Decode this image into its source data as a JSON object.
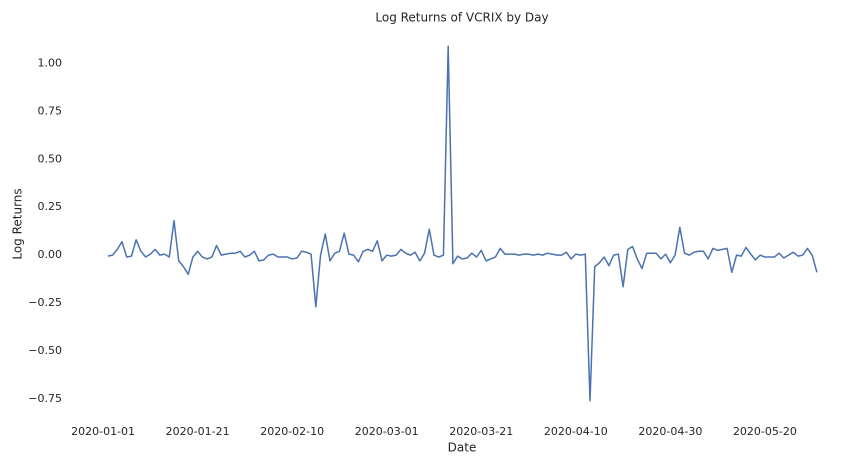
{
  "chart_data": {
    "type": "line",
    "title": "Log Returns of VCRIX by Day",
    "x_label": "Date",
    "y_label": "Log Returns",
    "color": "#4c72b0",
    "grid": false,
    "x": [
      "2020-01-02",
      "2020-01-03",
      "2020-01-04",
      "2020-01-05",
      "2020-01-06",
      "2020-01-07",
      "2020-01-08",
      "2020-01-09",
      "2020-01-10",
      "2020-01-11",
      "2020-01-12",
      "2020-01-13",
      "2020-01-14",
      "2020-01-15",
      "2020-01-16",
      "2020-01-17",
      "2020-01-18",
      "2020-01-19",
      "2020-01-20",
      "2020-01-21",
      "2020-01-22",
      "2020-01-23",
      "2020-01-24",
      "2020-01-25",
      "2020-01-26",
      "2020-01-27",
      "2020-01-28",
      "2020-01-29",
      "2020-01-30",
      "2020-01-31",
      "2020-02-01",
      "2020-02-02",
      "2020-02-03",
      "2020-02-04",
      "2020-02-05",
      "2020-02-06",
      "2020-02-07",
      "2020-02-08",
      "2020-02-09",
      "2020-02-10",
      "2020-02-11",
      "2020-02-12",
      "2020-02-13",
      "2020-02-14",
      "2020-02-15",
      "2020-02-16",
      "2020-02-17",
      "2020-02-18",
      "2020-02-19",
      "2020-02-20",
      "2020-02-21",
      "2020-02-22",
      "2020-02-23",
      "2020-02-24",
      "2020-02-25",
      "2020-02-26",
      "2020-02-27",
      "2020-02-28",
      "2020-02-29",
      "2020-03-01",
      "2020-03-02",
      "2020-03-03",
      "2020-03-04",
      "2020-03-05",
      "2020-03-06",
      "2020-03-07",
      "2020-03-08",
      "2020-03-09",
      "2020-03-10",
      "2020-03-11",
      "2020-03-12",
      "2020-03-13",
      "2020-03-14",
      "2020-03-15",
      "2020-03-16",
      "2020-03-17",
      "2020-03-18",
      "2020-03-19",
      "2020-03-20",
      "2020-03-21",
      "2020-03-22",
      "2020-03-23",
      "2020-03-24",
      "2020-03-25",
      "2020-03-26",
      "2020-03-27",
      "2020-03-28",
      "2020-03-29",
      "2020-03-30",
      "2020-03-31",
      "2020-04-01",
      "2020-04-02",
      "2020-04-03",
      "2020-04-04",
      "2020-04-05",
      "2020-04-06",
      "2020-04-07",
      "2020-04-08",
      "2020-04-09",
      "2020-04-10",
      "2020-04-11",
      "2020-04-12",
      "2020-04-13",
      "2020-04-14",
      "2020-04-15",
      "2020-04-16",
      "2020-04-17",
      "2020-04-18",
      "2020-04-19",
      "2020-04-20",
      "2020-04-21",
      "2020-04-22",
      "2020-04-23",
      "2020-04-24",
      "2020-04-25",
      "2020-04-26",
      "2020-04-27",
      "2020-04-28",
      "2020-04-29",
      "2020-04-30",
      "2020-05-01",
      "2020-05-02",
      "2020-05-03",
      "2020-05-04",
      "2020-05-05",
      "2020-05-06",
      "2020-05-07",
      "2020-05-08",
      "2020-05-09",
      "2020-05-10",
      "2020-05-11",
      "2020-05-12",
      "2020-05-13",
      "2020-05-14",
      "2020-05-15",
      "2020-05-16",
      "2020-05-17",
      "2020-05-18",
      "2020-05-19",
      "2020-05-20",
      "2020-05-21",
      "2020-05-22",
      "2020-05-23",
      "2020-05-24",
      "2020-05-25",
      "2020-05-26",
      "2020-05-27",
      "2020-05-28",
      "2020-05-29",
      "2020-05-30",
      "2020-05-31"
    ],
    "values": [
      -0.005,
      0,
      0.03,
      0.07,
      -0.01,
      -0.005,
      0.08,
      0.02,
      -0.01,
      0.005,
      0.03,
      0,
      0.005,
      -0.01,
      0.18,
      -0.03,
      -0.06,
      -0.1,
      -0.01,
      0.02,
      -0.01,
      -0.02,
      -0.01,
      0.05,
      0,
      0.005,
      0.01,
      0.01,
      0.02,
      -0.01,
      0,
      0.02,
      -0.03,
      -0.025,
      0,
      0.005,
      -0.01,
      -0.01,
      -0.01,
      -0.02,
      -0.015,
      0.02,
      0.015,
      0.005,
      -0.27,
      0,
      0.11,
      -0.03,
      0.01,
      0.02,
      0.115,
      0.005,
      0,
      -0.035,
      0.02,
      0.03,
      0.02,
      0.075,
      -0.03,
      0,
      -0.005,
      0,
      0.03,
      0.01,
      0,
      0.015,
      -0.03,
      0.01,
      0.135,
      0,
      -0.01,
      0,
      1.09,
      -0.045,
      -0.005,
      -0.02,
      -0.015,
      0.01,
      -0.01,
      0.025,
      -0.03,
      -0.02,
      -0.01,
      0.035,
      0.005,
      0.005,
      0.005,
      0,
      0.005,
      0.005,
      0,
      0.005,
      0,
      0.01,
      0.005,
      0,
      0,
      0.015,
      -0.02,
      0.005,
      0,
      0.005,
      -0.76,
      -0.06,
      -0.04,
      -0.01,
      -0.055,
      0,
      0.005,
      -0.165,
      0.03,
      0.045,
      -0.02,
      -0.07,
      0.01,
      0.01,
      0.01,
      -0.02,
      0.005,
      -0.04,
      0,
      0.145,
      0.01,
      0,
      0.015,
      0.02,
      0.02,
      -0.02,
      0.035,
      0.025,
      0.03,
      0.035,
      -0.09,
      0,
      -0.005,
      0.04,
      0.005,
      -0.025,
      0,
      -0.01,
      -0.01,
      -0.01,
      0.01,
      -0.015,
      0,
      0.015,
      -0.005,
      0,
      0.035,
      0,
      -0.09
    ],
    "xlim": [
      "2019-12-25",
      "2020-06-07"
    ],
    "xticks": [
      "2020-01-01",
      "2020-01-21",
      "2020-02-10",
      "2020-03-01",
      "2020-03-21",
      "2020-04-10",
      "2020-04-30",
      "2020-05-20"
    ],
    "ylim": [
      -0.85,
      1.18
    ],
    "yticks": [
      {
        "value": -0.75,
        "label": "−0.75"
      },
      {
        "value": -0.5,
        "label": "−0.50"
      },
      {
        "value": -0.25,
        "label": "−0.25"
      },
      {
        "value": 0,
        "label": "0.00"
      },
      {
        "value": 0.25,
        "label": "0.25"
      },
      {
        "value": 0.5,
        "label": "0.50"
      },
      {
        "value": 0.75,
        "label": "0.75"
      },
      {
        "value": 1,
        "label": "1.00"
      }
    ]
  }
}
